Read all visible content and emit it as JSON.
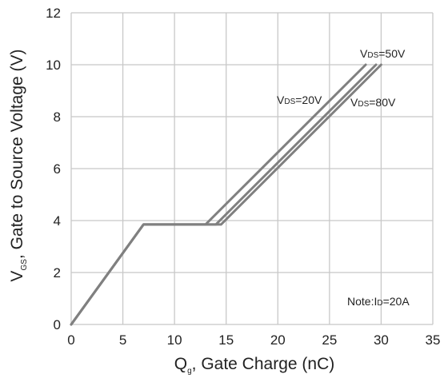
{
  "chart_data": {
    "type": "line",
    "xlabel": {
      "main": "Q",
      "sub": "g",
      "rest": ", Gate Charge (nC)"
    },
    "ylabel": {
      "main": "V",
      "sub": "GS",
      "rest": ", Gate to Source Voltage (V)"
    },
    "xlim": [
      0,
      35
    ],
    "ylim": [
      0,
      12
    ],
    "xticks": [
      0,
      5,
      10,
      15,
      20,
      25,
      30,
      35
    ],
    "yticks": [
      0,
      2,
      4,
      6,
      8,
      10,
      12
    ],
    "grid": true,
    "series": [
      {
        "label": {
          "main": "V",
          "sub": "DS",
          "rest": "=20V"
        },
        "color": "#808080",
        "x": [
          0,
          7,
          13,
          28.5
        ],
        "y": [
          0,
          3.85,
          3.85,
          10
        ]
      },
      {
        "label": {
          "main": "V",
          "sub": "DS",
          "rest": "=50V"
        },
        "color": "#808080",
        "x": [
          0,
          7,
          14,
          29.5
        ],
        "y": [
          0,
          3.85,
          3.85,
          10
        ]
      },
      {
        "label": {
          "main": "V",
          "sub": "DS",
          "rest": "=80V"
        },
        "color": "#808080",
        "x": [
          0,
          7,
          14.5,
          30
        ],
        "y": [
          0,
          3.85,
          3.85,
          10
        ]
      }
    ],
    "annotation": {
      "main": "Note:I",
      "sub": "D",
      "rest": "=20A"
    }
  }
}
